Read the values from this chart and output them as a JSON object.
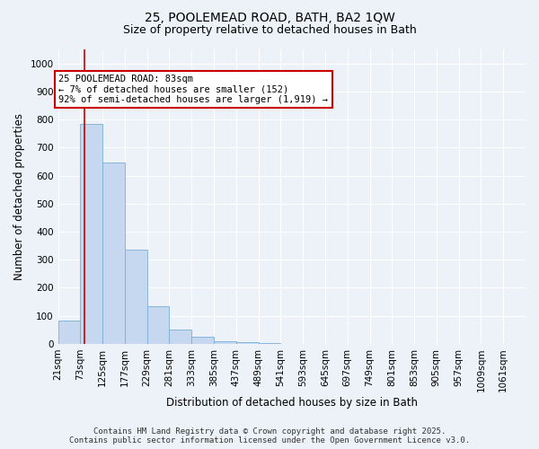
{
  "title_line1": "25, POOLEMEAD ROAD, BATH, BA2 1QW",
  "title_line2": "Size of property relative to detached houses in Bath",
  "xlabel": "Distribution of detached houses by size in Bath",
  "ylabel": "Number of detached properties",
  "bar_color": "#c5d8f0",
  "bar_edge_color": "#7bafd4",
  "bin_labels": [
    "21sqm",
    "73sqm",
    "125sqm",
    "177sqm",
    "229sqm",
    "281sqm",
    "333sqm",
    "385sqm",
    "437sqm",
    "489sqm",
    "541sqm",
    "593sqm",
    "645sqm",
    "697sqm",
    "749sqm",
    "801sqm",
    "853sqm",
    "905sqm",
    "957sqm",
    "1009sqm",
    "1061sqm"
  ],
  "bin_edges": [
    21,
    73,
    125,
    177,
    229,
    281,
    333,
    385,
    437,
    489,
    541,
    593,
    645,
    697,
    749,
    801,
    853,
    905,
    957,
    1009,
    1061
  ],
  "bar_heights": [
    83,
    783,
    645,
    335,
    135,
    50,
    25,
    10,
    5,
    2,
    1,
    0,
    0,
    0,
    0,
    0,
    0,
    0,
    0,
    0
  ],
  "ylim": [
    0,
    1050
  ],
  "yticks": [
    0,
    100,
    200,
    300,
    400,
    500,
    600,
    700,
    800,
    900,
    1000
  ],
  "property_size": 83,
  "annotation_text": "25 POOLEMEAD ROAD: 83sqm\n← 7% of detached houses are smaller (152)\n92% of semi-detached houses are larger (1,919) →",
  "annotation_box_color": "#ffffff",
  "annotation_box_edge_color": "#cc0000",
  "red_line_color": "#cc0000",
  "background_color": "#edf2f9",
  "grid_color": "#ffffff",
  "footer_line1": "Contains HM Land Registry data © Crown copyright and database right 2025.",
  "footer_line2": "Contains public sector information licensed under the Open Government Licence v3.0.",
  "title_fontsize": 10,
  "subtitle_fontsize": 9,
  "axis_label_fontsize": 8.5,
  "tick_fontsize": 7.5,
  "annotation_fontsize": 7.5,
  "footer_fontsize": 6.5
}
